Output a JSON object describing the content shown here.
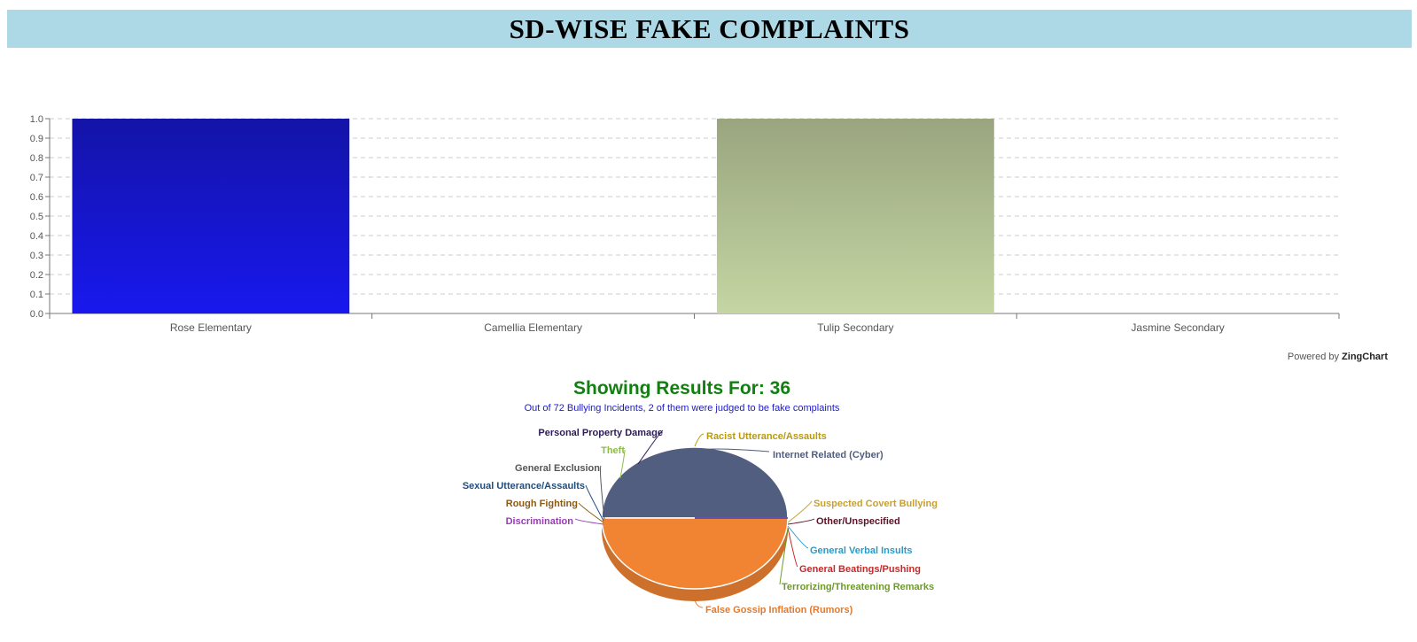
{
  "page": {
    "title": "SD-WISE FAKE COMPLAINTS",
    "powered_by_prefix": "Powered by",
    "powered_by_brand": "ZingChart"
  },
  "chart_data": [
    {
      "type": "bar",
      "categories": [
        "Rose Elementary",
        "Camellia Elementary",
        "Tulip Secondary",
        "Jasmine Secondary"
      ],
      "values": [
        1,
        0,
        1,
        0
      ],
      "colors": [
        [
          "#1414a8",
          "#1818ee"
        ],
        [
          "#1414a8",
          "#1818ee"
        ],
        [
          "#9aa57f",
          "#c4d6a3"
        ],
        [
          "#9aa57f",
          "#c4d6a3"
        ]
      ],
      "ylim": [
        0,
        1
      ],
      "yticks": [
        "0.0",
        "0.1",
        "0.2",
        "0.3",
        "0.4",
        "0.5",
        "0.6",
        "0.7",
        "0.8",
        "0.9",
        "1.0"
      ],
      "grid": true,
      "xlabel": "",
      "ylabel": ""
    },
    {
      "type": "pie",
      "title": "Showing Results For: 36",
      "subtitle": "Out of 72 Bullying Incidents, 2 of them were judged to be fake complaints",
      "slices": [
        {
          "label": "Internet Related (Cyber)",
          "value": 1,
          "color": "#525e80",
          "label_color": "#525e80"
        },
        {
          "label": "False Gossip Inflation (Rumors)",
          "value": 1,
          "color": "#f08433",
          "label_color": "#e07a30"
        },
        {
          "label": "Racist Utterance/Assaults",
          "value": 0,
          "color": "#b8a000",
          "label_color": "#b89a10"
        },
        {
          "label": "Personal Property Damage",
          "value": 0,
          "color": "#2c1c58",
          "label_color": "#2c1c58"
        },
        {
          "label": "Theft",
          "value": 0,
          "color": "#8dbb4a",
          "label_color": "#8dbb4a"
        },
        {
          "label": "General Exclusion",
          "value": 0,
          "color": "#666666",
          "label_color": "#555555"
        },
        {
          "label": "Sexual Utterance/Assaults",
          "value": 0,
          "color": "#1e4e7e",
          "label_color": "#1e4e7e"
        },
        {
          "label": "Rough Fighting",
          "value": 0,
          "color": "#8a5a14",
          "label_color": "#8a5a14"
        },
        {
          "label": "Discrimination",
          "value": 0,
          "color": "#9a3ab8",
          "label_color": "#9a3ab8"
        },
        {
          "label": "Suspected Covert Bullying",
          "value": 0,
          "color": "#c9a030",
          "label_color": "#c9a030"
        },
        {
          "label": "Other/Unspecified",
          "value": 0,
          "color": "#5a1428",
          "label_color": "#5a1428"
        },
        {
          "label": "General Verbal Insults",
          "value": 0,
          "color": "#2b9ac8",
          "label_color": "#2b9ac8"
        },
        {
          "label": "General Beatings/Pushing",
          "value": 0,
          "color": "#c82828",
          "label_color": "#c82828"
        },
        {
          "label": "Terrorizing/Threatening Remarks",
          "value": 0,
          "color": "#6e9a28",
          "label_color": "#6e9a28"
        }
      ]
    }
  ]
}
